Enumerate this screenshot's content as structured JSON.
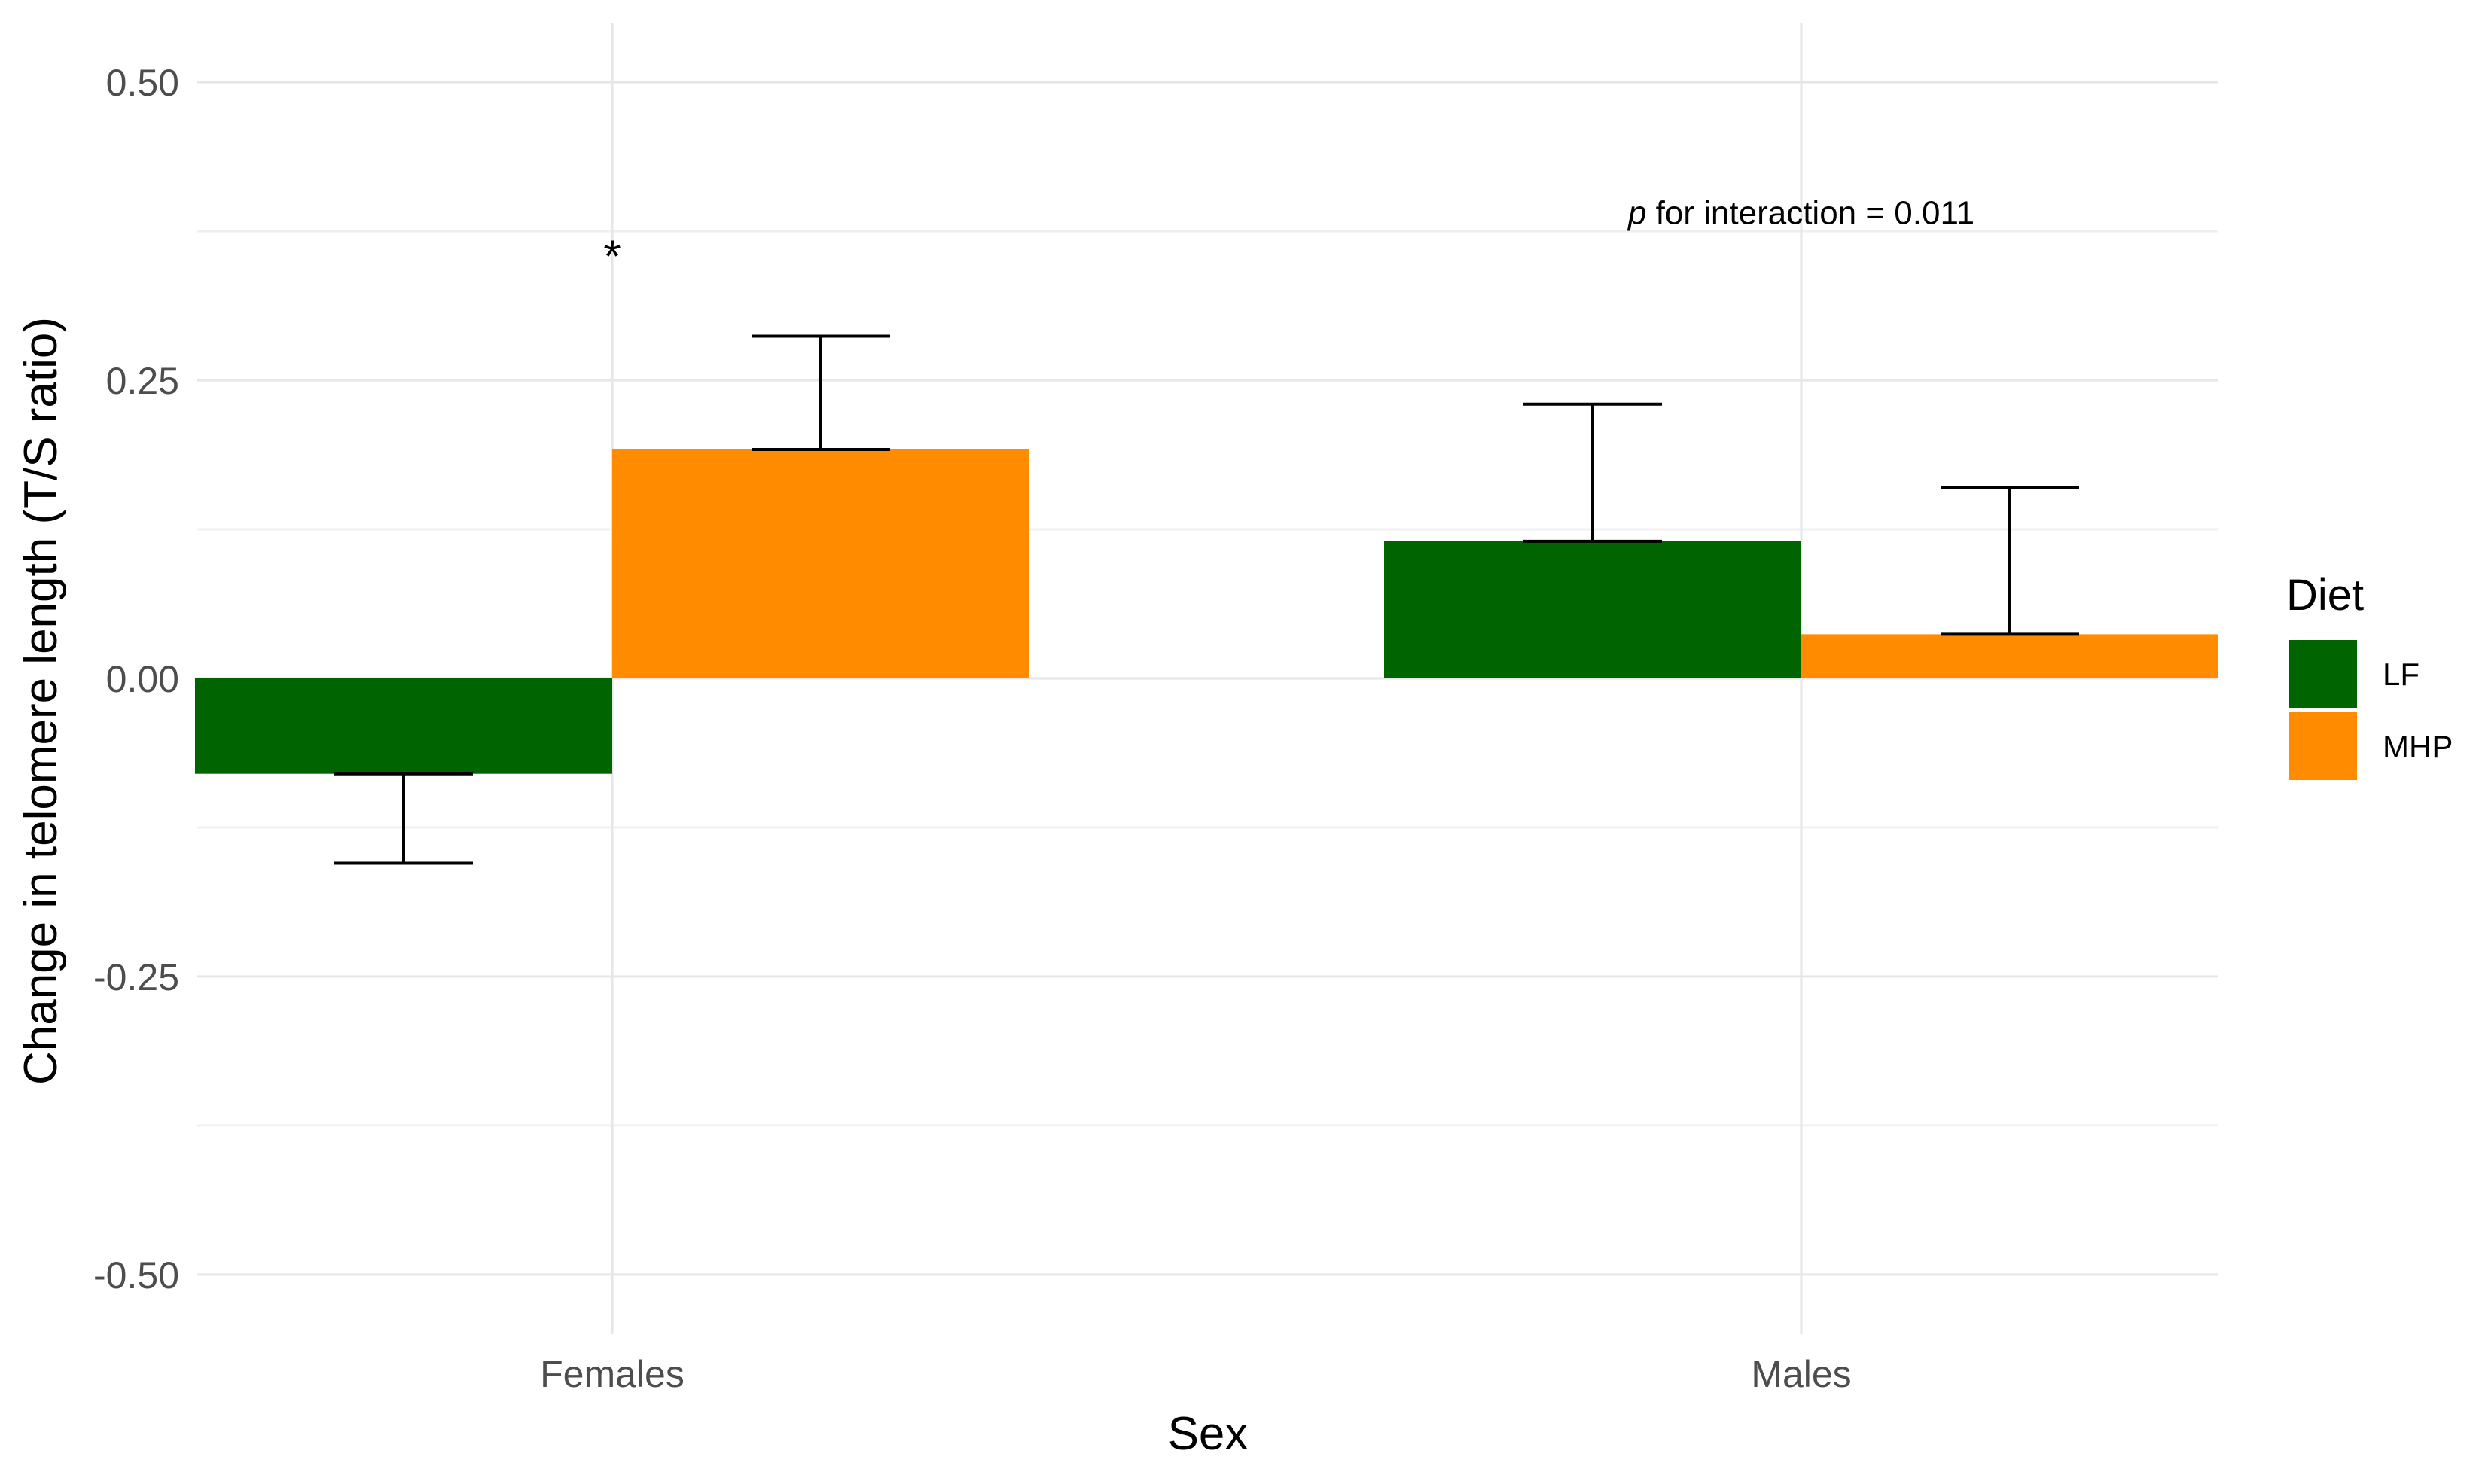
{
  "chart_data": {
    "type": "bar",
    "xlabel": "Sex",
    "ylabel": "Change in telomere length (T/S ratio)",
    "categories": [
      "Females",
      "Males"
    ],
    "ylim": [
      -0.55,
      0.55
    ],
    "yticks": [
      -0.5,
      -0.25,
      0.0,
      0.25,
      0.5
    ],
    "ytick_labels": [
      "-0.50",
      "-0.25",
      "0.00",
      "0.25",
      "0.50"
    ],
    "grid": true,
    "legend": {
      "title": "Diet",
      "placement": "right",
      "entries": [
        "LF",
        "MHP"
      ]
    },
    "series": [
      {
        "name": "LF",
        "color": "#006400",
        "values": [
          -0.08,
          0.115
        ],
        "error": [
          0.075,
          0.115
        ]
      },
      {
        "name": "MHP",
        "color": "#FF8C00",
        "values": [
          0.192,
          0.037
        ],
        "error": [
          0.095,
          0.123
        ]
      }
    ],
    "annotations": {
      "significance": "*",
      "significance_y": 0.36,
      "interaction_p_symbol": "p",
      "interaction_text": " for interaction = 0.011",
      "interaction_y": 0.39
    }
  }
}
